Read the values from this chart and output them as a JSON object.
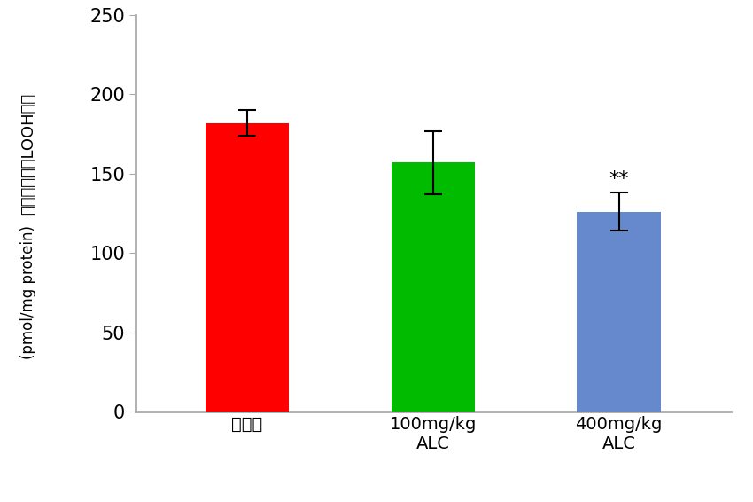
{
  "categories": [
    "食塩水",
    "100mg/kg\nALC",
    "400mg/kg\nALC"
  ],
  "values": [
    182,
    157,
    126
  ],
  "errors": [
    8,
    20,
    12
  ],
  "bar_colors": [
    "#ff0000",
    "#00bb00",
    "#6688cc"
  ],
  "ylabel_japanese": "過酸化脂質（LOOH）量",
  "ylabel_english": "(pmol/mg protein)",
  "ylim": [
    0,
    250
  ],
  "yticks": [
    0,
    50,
    100,
    150,
    200,
    250
  ],
  "significance": [
    false,
    false,
    true
  ],
  "sig_label": "**",
  "bar_width": 0.45,
  "background_color": "#ffffff",
  "axis_color": "#aaaaaa",
  "error_cap_size": 7,
  "error_linewidth": 1.5
}
